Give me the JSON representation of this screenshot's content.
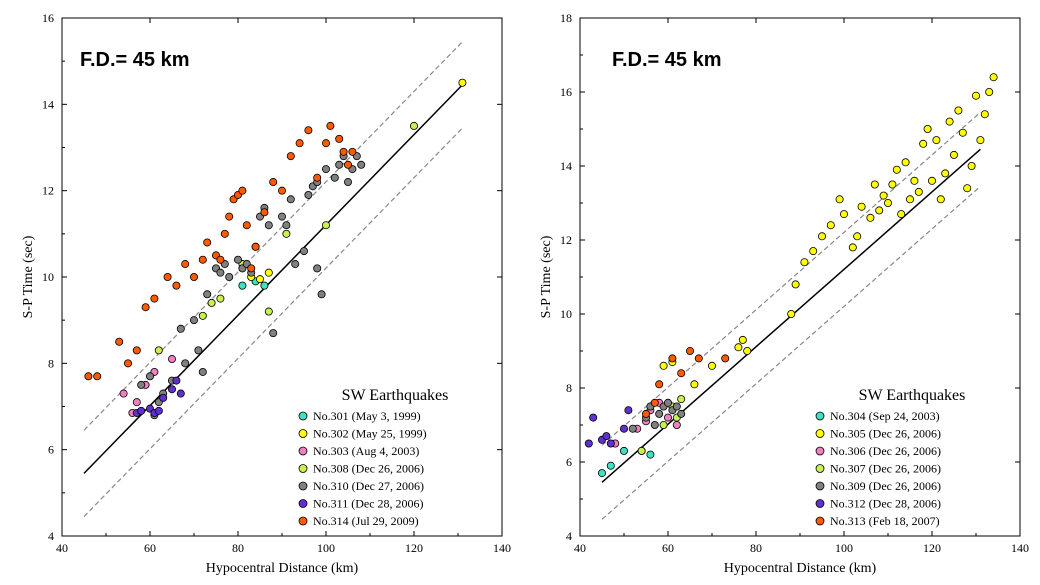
{
  "chart_data": [
    {
      "type": "scatter",
      "title": "F.D.= 45 km",
      "xlabel": "Hypocentral Distance (km)",
      "ylabel": "S-P Time (sec)",
      "xlim": [
        40,
        140
      ],
      "ylim": [
        4,
        16
      ],
      "x_ticks": [
        "40",
        "60",
        "80",
        "100",
        "120",
        "140"
      ],
      "y_ticks": [
        "4",
        "6",
        "8",
        "10",
        "12",
        "14",
        "16"
      ],
      "grid": false,
      "legend_title": "SW Earthquakes",
      "legend_position": "bottom-right",
      "reference_lines": [
        {
          "style": "solid",
          "color": "#000000",
          "x": [
            45,
            131
          ],
          "y": [
            5.45,
            14.45
          ]
        },
        {
          "style": "dashed",
          "color": "#888888",
          "x": [
            45,
            131
          ],
          "y": [
            6.45,
            15.45
          ]
        },
        {
          "style": "dashed",
          "color": "#888888",
          "x": [
            45,
            131
          ],
          "y": [
            4.45,
            13.45
          ]
        }
      ],
      "series": [
        {
          "name": "No.301 (May 3, 1999)",
          "color": "#40e0c0",
          "points": [
            [
              81,
              9.8
            ],
            [
              84,
              9.9
            ],
            [
              86,
              9.8
            ]
          ]
        },
        {
          "name": "No.302 (May 25, 1999)",
          "color": "#ffff00",
          "points": [
            [
              83,
              10.0
            ],
            [
              85,
              9.95
            ],
            [
              87,
              10.1
            ],
            [
              131,
              14.5
            ]
          ]
        },
        {
          "name": "No.303 (Aug 4, 2003)",
          "color": "#f080c0",
          "points": [
            [
              54,
              7.3
            ],
            [
              56,
              6.85
            ],
            [
              57,
              7.1
            ],
            [
              59,
              7.5
            ],
            [
              61,
              7.8
            ],
            [
              65,
              8.1
            ]
          ]
        },
        {
          "name": "No.308 (Dec 26, 2006)",
          "color": "#c8f050",
          "points": [
            [
              62,
              8.3
            ],
            [
              72,
              9.1
            ],
            [
              74,
              9.4
            ],
            [
              76,
              9.5
            ],
            [
              81,
              10.3
            ],
            [
              87,
              9.2
            ],
            [
              91,
              11.0
            ],
            [
              100,
              11.2
            ],
            [
              120,
              13.5
            ]
          ]
        },
        {
          "name": "No.310 (Dec 27, 2006)",
          "color": "#808080",
          "points": [
            [
              58,
              7.5
            ],
            [
              60,
              7.7
            ],
            [
              61,
              6.8
            ],
            [
              62,
              7.1
            ],
            [
              63,
              7.3
            ],
            [
              65,
              7.6
            ],
            [
              67,
              8.8
            ],
            [
              68,
              8.0
            ],
            [
              70,
              9.0
            ],
            [
              71,
              8.3
            ],
            [
              72,
              7.8
            ],
            [
              73,
              9.6
            ],
            [
              75,
              10.2
            ],
            [
              76,
              10.1
            ],
            [
              77,
              10.3
            ],
            [
              78,
              10.0
            ],
            [
              80,
              10.4
            ],
            [
              81,
              10.2
            ],
            [
              82,
              10.3
            ],
            [
              83,
              10.1
            ],
            [
              84,
              10.7
            ],
            [
              85,
              11.4
            ],
            [
              86,
              11.6
            ],
            [
              87,
              11.2
            ],
            [
              88,
              8.7
            ],
            [
              90,
              11.4
            ],
            [
              91,
              11.2
            ],
            [
              92,
              11.8
            ],
            [
              93,
              10.3
            ],
            [
              95,
              10.6
            ],
            [
              96,
              11.9
            ],
            [
              97,
              12.1
            ],
            [
              98,
              12.2
            ],
            [
              98,
              10.2
            ],
            [
              99,
              9.6
            ],
            [
              100,
              12.5
            ],
            [
              102,
              12.3
            ],
            [
              103,
              12.6
            ],
            [
              104,
              12.8
            ],
            [
              105,
              12.2
            ],
            [
              106,
              12.5
            ],
            [
              107,
              12.8
            ],
            [
              108,
              12.6
            ]
          ]
        },
        {
          "name": "No.311 (Dec 28, 2006)",
          "color": "#6030d0",
          "points": [
            [
              57,
              6.85
            ],
            [
              58,
              6.9
            ],
            [
              60,
              6.95
            ],
            [
              61,
              6.85
            ],
            [
              62,
              6.9
            ],
            [
              63,
              7.2
            ],
            [
              65,
              7.4
            ],
            [
              66,
              7.6
            ],
            [
              67,
              7.3
            ]
          ]
        },
        {
          "name": "No.314 (Jul 29, 2009)",
          "color": "#ff5a00",
          "points": [
            [
              46,
              7.7
            ],
            [
              48,
              7.7
            ],
            [
              53,
              8.5
            ],
            [
              55,
              8.0
            ],
            [
              57,
              8.3
            ],
            [
              59,
              9.3
            ],
            [
              61,
              9.5
            ],
            [
              64,
              10.0
            ],
            [
              66,
              9.8
            ],
            [
              68,
              10.3
            ],
            [
              70,
              10.0
            ],
            [
              72,
              10.4
            ],
            [
              73,
              10.8
            ],
            [
              75,
              10.5
            ],
            [
              76,
              10.4
            ],
            [
              77,
              11.0
            ],
            [
              78,
              11.4
            ],
            [
              79,
              11.8
            ],
            [
              80,
              11.9
            ],
            [
              81,
              12.0
            ],
            [
              82,
              11.2
            ],
            [
              83,
              10.2
            ],
            [
              84,
              10.7
            ],
            [
              86,
              11.5
            ],
            [
              88,
              12.2
            ],
            [
              90,
              12.0
            ],
            [
              92,
              12.8
            ],
            [
              94,
              13.1
            ],
            [
              96,
              13.4
            ],
            [
              98,
              12.3
            ],
            [
              100,
              13.1
            ],
            [
              101,
              13.5
            ],
            [
              103,
              13.2
            ],
            [
              104,
              12.9
            ],
            [
              105,
              12.6
            ],
            [
              106,
              12.9
            ]
          ]
        }
      ]
    },
    {
      "type": "scatter",
      "title": "F.D.= 45 km",
      "xlabel": "Hypocentral Distance (km)",
      "ylabel": "S-P Time (sec)",
      "xlim": [
        40,
        140
      ],
      "ylim": [
        4,
        18
      ],
      "x_ticks": [
        "40",
        "60",
        "80",
        "100",
        "120",
        "140"
      ],
      "y_ticks": [
        "4",
        "6",
        "8",
        "10",
        "12",
        "14",
        "16",
        "18"
      ],
      "grid": false,
      "legend_title": "SW Earthquakes",
      "legend_position": "bottom-right",
      "reference_lines": [
        {
          "style": "solid",
          "color": "#000000",
          "x": [
            45,
            131
          ],
          "y": [
            5.45,
            14.45
          ]
        },
        {
          "style": "dashed",
          "color": "#888888",
          "x": [
            45,
            131
          ],
          "y": [
            6.45,
            15.45
          ]
        },
        {
          "style": "dashed",
          "color": "#888888",
          "x": [
            45,
            131
          ],
          "y": [
            4.45,
            13.45
          ]
        }
      ],
      "series": [
        {
          "name": "No.304 (Sep 24, 2003)",
          "color": "#40e0c0",
          "points": [
            [
              45,
              5.7
            ],
            [
              47,
              5.9
            ],
            [
              50,
              6.3
            ],
            [
              54,
              6.3
            ],
            [
              56,
              6.2
            ]
          ]
        },
        {
          "name": "No.305 (Dec 26, 2006)",
          "color": "#ffff00",
          "points": [
            [
              59,
              8.6
            ],
            [
              61,
              8.7
            ],
            [
              66,
              8.1
            ],
            [
              70,
              8.6
            ],
            [
              76,
              9.1
            ],
            [
              77,
              9.3
            ],
            [
              78,
              9.0
            ],
            [
              88,
              10.0
            ],
            [
              89,
              10.8
            ],
            [
              91,
              11.4
            ],
            [
              93,
              11.7
            ],
            [
              95,
              12.1
            ],
            [
              97,
              12.4
            ],
            [
              99,
              13.1
            ],
            [
              100,
              12.7
            ],
            [
              102,
              11.8
            ],
            [
              103,
              12.1
            ],
            [
              104,
              12.9
            ],
            [
              106,
              12.6
            ],
            [
              107,
              13.5
            ],
            [
              108,
              12.8
            ],
            [
              109,
              13.2
            ],
            [
              110,
              13.0
            ],
            [
              111,
              13.5
            ],
            [
              112,
              13.9
            ],
            [
              113,
              12.7
            ],
            [
              114,
              14.1
            ],
            [
              115,
              13.1
            ],
            [
              116,
              13.6
            ],
            [
              117,
              13.3
            ],
            [
              118,
              14.6
            ],
            [
              119,
              15.0
            ],
            [
              120,
              13.6
            ],
            [
              121,
              14.7
            ],
            [
              122,
              13.1
            ],
            [
              123,
              13.8
            ],
            [
              124,
              15.2
            ],
            [
              125,
              14.3
            ],
            [
              126,
              15.5
            ],
            [
              127,
              14.9
            ],
            [
              128,
              13.4
            ],
            [
              129,
              14.0
            ],
            [
              130,
              15.9
            ],
            [
              131,
              14.7
            ],
            [
              132,
              15.4
            ],
            [
              133,
              16.0
            ],
            [
              134,
              16.4
            ]
          ]
        },
        {
          "name": "No.306 (Dec 26, 2006)",
          "color": "#f080c0",
          "points": [
            [
              48,
              6.5
            ],
            [
              53,
              6.9
            ],
            [
              55,
              7.1
            ],
            [
              56,
              7.4
            ],
            [
              58,
              7.6
            ],
            [
              60,
              7.2
            ],
            [
              62,
              7.0
            ]
          ]
        },
        {
          "name": "No.307 (Dec 26, 2006)",
          "color": "#c8f050",
          "points": [
            [
              54,
              6.3
            ],
            [
              59,
              7.0
            ],
            [
              61,
              7.5
            ],
            [
              62,
              7.2
            ],
            [
              63,
              7.7
            ]
          ]
        },
        {
          "name": "No.309 (Dec 26, 2006)",
          "color": "#808080",
          "points": [
            [
              52,
              6.9
            ],
            [
              55,
              7.2
            ],
            [
              56,
              7.5
            ],
            [
              57,
              7.0
            ],
            [
              58,
              7.3
            ],
            [
              59,
              7.5
            ],
            [
              60,
              7.6
            ],
            [
              61,
              7.4
            ],
            [
              62,
              7.5
            ],
            [
              63,
              7.3
            ]
          ]
        },
        {
          "name": "No.312 (Dec 28, 2006)",
          "color": "#6030d0",
          "points": [
            [
              42,
              6.5
            ],
            [
              43,
              7.2
            ],
            [
              45,
              6.6
            ],
            [
              46,
              6.7
            ],
            [
              47,
              6.5
            ],
            [
              50,
              6.9
            ],
            [
              51,
              7.4
            ]
          ]
        },
        {
          "name": "No.313 (Feb 18, 2007)",
          "color": "#ff5a00",
          "points": [
            [
              55,
              7.3
            ],
            [
              57,
              7.6
            ],
            [
              58,
              8.1
            ],
            [
              61,
              8.8
            ],
            [
              63,
              8.4
            ],
            [
              65,
              9.0
            ],
            [
              67,
              8.8
            ],
            [
              73,
              8.8
            ]
          ]
        }
      ]
    }
  ]
}
